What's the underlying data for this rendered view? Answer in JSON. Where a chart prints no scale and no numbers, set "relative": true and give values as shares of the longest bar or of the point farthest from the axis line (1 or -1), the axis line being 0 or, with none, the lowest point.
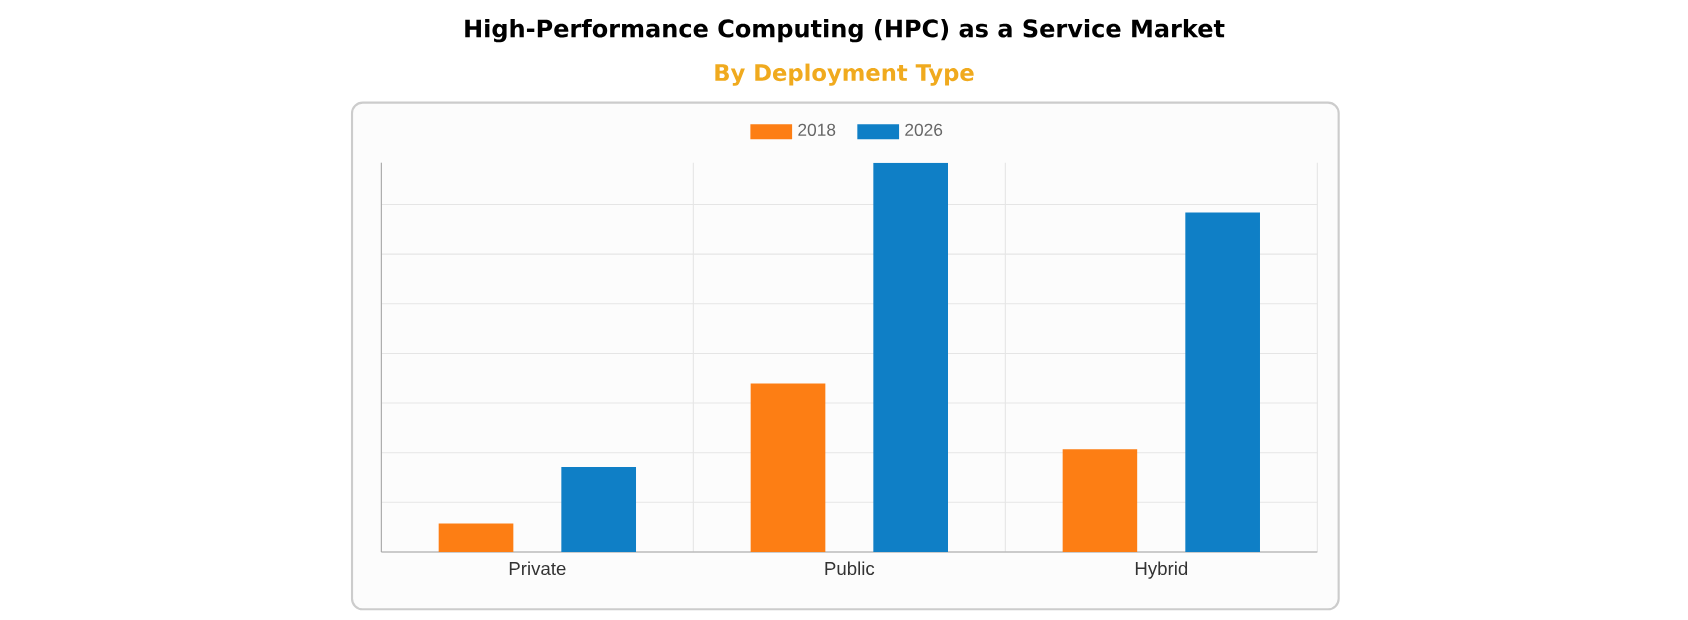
{
  "chart_data": {
    "type": "bar",
    "title": "High-Performance Computing (HPC) as a Service Market",
    "subtitle": "By Deployment Type",
    "categories": [
      "Private",
      "Public",
      "Hybrid"
    ],
    "series": [
      {
        "name": "2018",
        "color": "#fd7e14",
        "values": [
          0.073,
          0.433,
          0.264
        ]
      },
      {
        "name": "2026",
        "color": "#0f7fc6",
        "values": [
          0.218,
          1,
          0.872
        ]
      }
    ],
    "relative": true,
    "grid": true,
    "legend": "top"
  }
}
